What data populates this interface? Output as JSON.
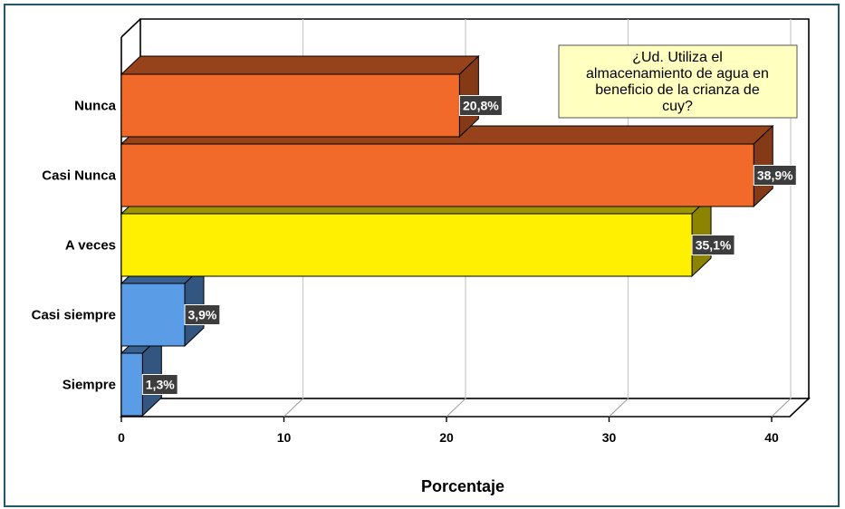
{
  "chart_data": {
    "type": "bar",
    "orientation": "horizontal",
    "style": "3d",
    "title": "¿Ud. Utiliza el almacenamiento de agua en beneficio de la crianza de cuy?",
    "title_lines": [
      "¿Ud. Utiliza el",
      "almacenamiento de agua en",
      "beneficio de la crianza de",
      "cuy?"
    ],
    "xlabel": "Porcentaje",
    "ylabel": "",
    "xlim": [
      0,
      40
    ],
    "xticks": [
      0,
      10,
      20,
      30,
      40
    ],
    "grid": "vertical",
    "categories": [
      "Nunca",
      "Casi Nunca",
      "A veces",
      "Casi siempre",
      "Siempre"
    ],
    "values": [
      20.8,
      38.9,
      35.1,
      3.9,
      1.3
    ],
    "data_labels": [
      "20,8%",
      "38,9%",
      "35,1%",
      "3,9%",
      "1,3%"
    ],
    "colors": [
      "#f26a2a",
      "#f26a2a",
      "#ffef00",
      "#5b9ce6",
      "#5b9ce6"
    ]
  }
}
